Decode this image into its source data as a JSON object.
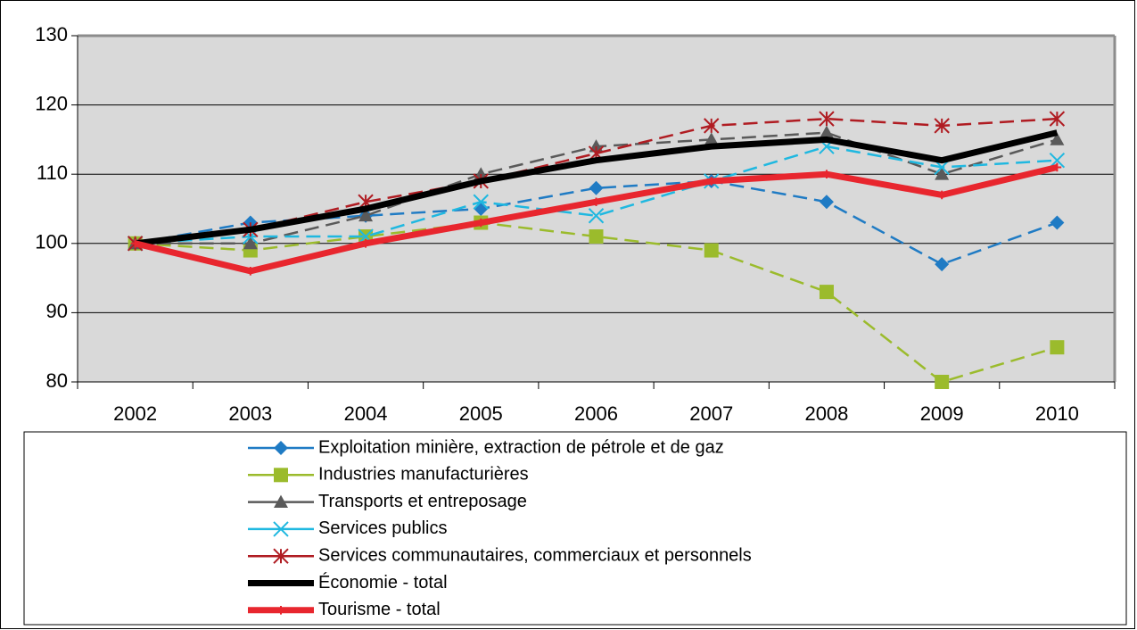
{
  "chart_data": {
    "type": "line",
    "categories": [
      "2002",
      "2003",
      "2004",
      "2005",
      "2006",
      "2007",
      "2008",
      "2009",
      "2010"
    ],
    "ylim": [
      80,
      130
    ],
    "yticks": [
      80,
      90,
      100,
      110,
      120,
      130
    ],
    "grid": true,
    "legend": "bottom",
    "series": [
      {
        "name": "Exploitation minière, extraction de pétrole et de gaz",
        "color": "#1f7bc4",
        "marker": "diamond",
        "dashed": true,
        "values": [
          100,
          103,
          104,
          105,
          108,
          109,
          106,
          97,
          103
        ]
      },
      {
        "name": "Industries manufacturières",
        "color": "#9bbb2c",
        "marker": "square",
        "dashed": true,
        "values": [
          100,
          99,
          101,
          103,
          101,
          99,
          93,
          80,
          85
        ]
      },
      {
        "name": "Transports et entreposage",
        "color": "#5a5a5a",
        "marker": "triangle",
        "dashed": true,
        "values": [
          100,
          100,
          104,
          110,
          114,
          115,
          116,
          110,
          115
        ]
      },
      {
        "name": "Services publics",
        "color": "#1fb8e0",
        "marker": "x",
        "dashed": true,
        "values": [
          100,
          101,
          101,
          106,
          104,
          109,
          114,
          111,
          112
        ]
      },
      {
        "name": "Services communautaires, commerciaux et personnels",
        "color": "#b01c22",
        "marker": "star",
        "dashed": true,
        "values": [
          100,
          102,
          106,
          109,
          113,
          117,
          118,
          117,
          118
        ]
      },
      {
        "name": "Économie - total",
        "color": "#000000",
        "marker": "none",
        "dashed": false,
        "values": [
          100,
          102,
          105,
          109,
          112,
          114,
          115,
          112,
          116
        ]
      },
      {
        "name": "Tourisme - total",
        "color": "#e8262e",
        "marker": "plus",
        "dashed": false,
        "values": [
          100,
          96,
          100,
          103,
          106,
          109,
          110,
          107,
          111
        ]
      }
    ]
  }
}
